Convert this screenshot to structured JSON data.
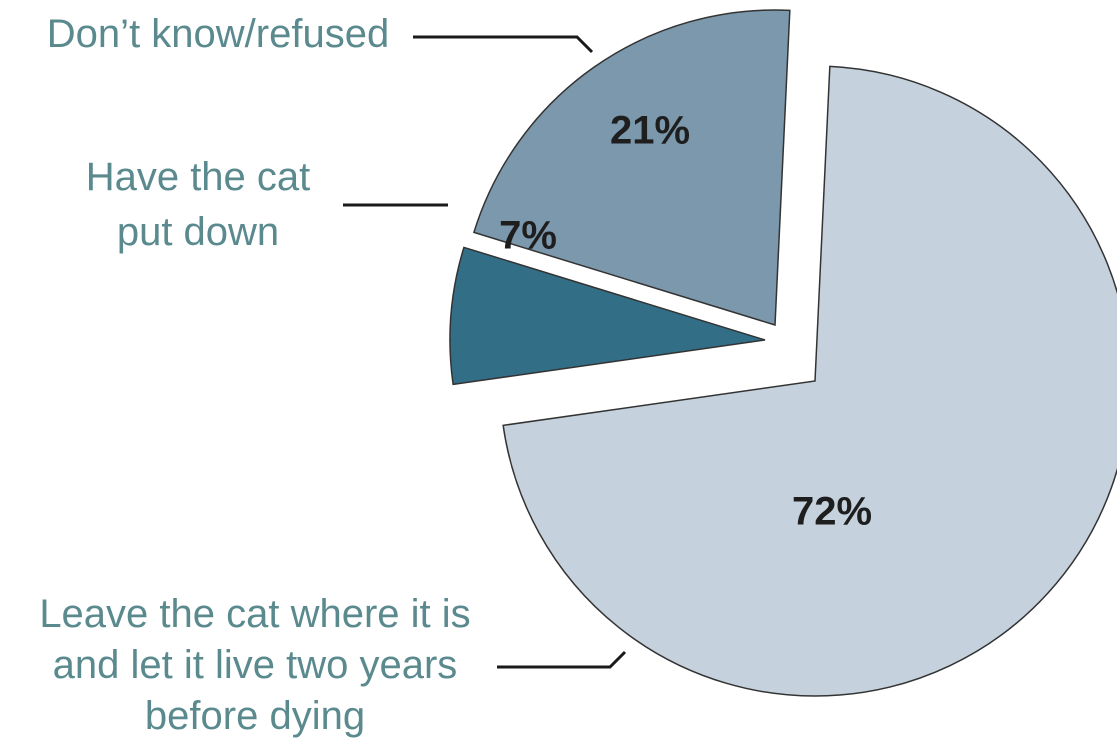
{
  "chart_data": {
    "type": "pie",
    "slices": [
      {
        "key": "leave",
        "label_lines": [
          "Leave the cat where it is",
          "and let it live two years",
          "before dying"
        ],
        "value": 72,
        "value_label": "72%",
        "color": "#c5d2de"
      },
      {
        "key": "put_down",
        "label_lines": [
          "Have the cat",
          "put down"
        ],
        "value": 7,
        "value_label": "7%",
        "color": "#336e87"
      },
      {
        "key": "dont_know",
        "label_lines": [
          "Don’t know/refused"
        ],
        "value": 21,
        "value_label": "21%",
        "color": "#7b98ac"
      }
    ],
    "exploded": true,
    "label_color": "#5a8a8e"
  }
}
